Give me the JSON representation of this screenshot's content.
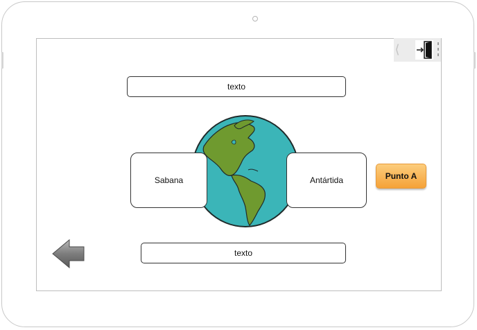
{
  "top_text": {
    "label": "texto"
  },
  "bottom_text": {
    "label": "texto"
  },
  "cards": {
    "left": {
      "label": "Sabana"
    },
    "right": {
      "label": "Antártida"
    }
  },
  "punto_button": {
    "label": "Punto A"
  },
  "icons": {
    "exit": "exit-door-icon",
    "back": "back-arrow-icon",
    "globe": "globe-image",
    "collapse": "chevron-left-icon"
  },
  "colors": {
    "ocean": "#3bb5b8",
    "land": "#6f9a2f",
    "button_gradient_top": "#fccd7d",
    "button_gradient_bottom": "#f5a238",
    "arrow": "#8c8c8c"
  }
}
